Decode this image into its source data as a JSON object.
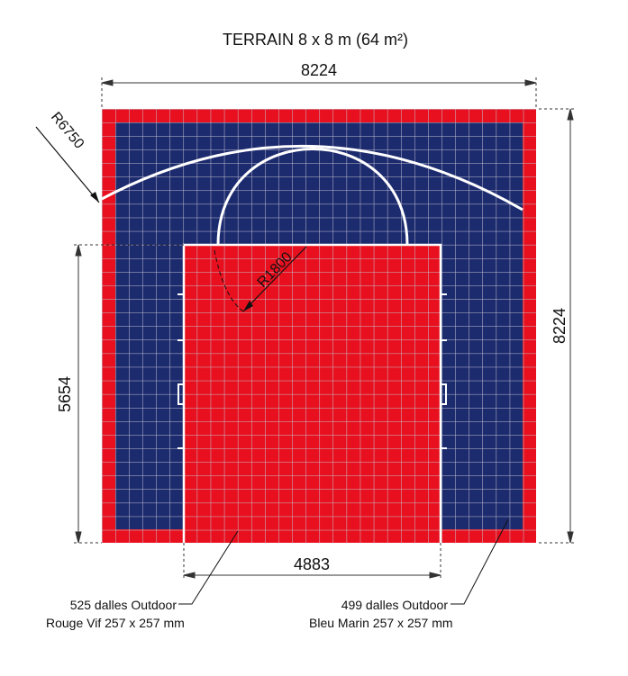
{
  "title": "TERRAIN 8 x 8 m (64 m²)",
  "dimensions": {
    "top_width": "8224",
    "right_height": "8224",
    "left_height": "5654",
    "bottom_width": "4883",
    "arc_radius": "R6750",
    "key_radius": "R1800"
  },
  "legend": {
    "red": {
      "line1": "525 dalles Outdoor",
      "line2": "Rouge Vif 257 x 257 mm"
    },
    "blue": {
      "line1": "499 dalles Outdoor",
      "line2": "Bleu Marin 257 x 257 mm"
    }
  },
  "colors": {
    "red": "#e8101e",
    "blue": "#1c2a6e",
    "grid": "#b8b8c8",
    "court_lines": "#ffffff",
    "dimension_lines": "#333333"
  }
}
